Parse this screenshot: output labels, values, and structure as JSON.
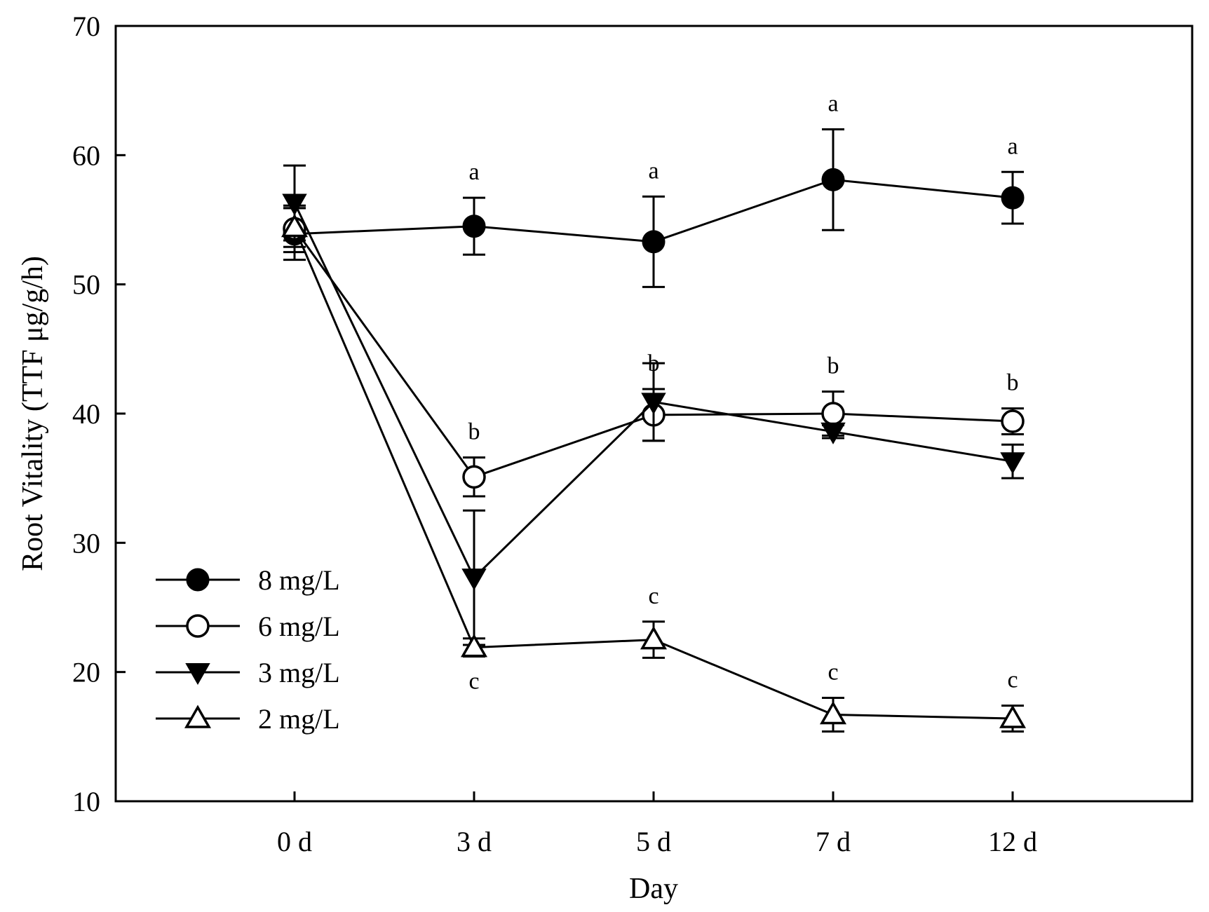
{
  "chart_data": {
    "type": "line",
    "title": "",
    "xlabel": "Day",
    "ylabel": "Root Vitality (TTF μg/g/h)",
    "categories": [
      "0 d",
      "3 d",
      "5 d",
      "7 d",
      "12 d"
    ],
    "ylim": [
      10,
      70
    ],
    "yticks": [
      10,
      20,
      30,
      40,
      50,
      60,
      70
    ],
    "grid": false,
    "legend_position": "bottom-left",
    "series": [
      {
        "name": "8 mg/L",
        "marker": "circle-filled",
        "values": [
          53.9,
          54.5,
          53.3,
          58.1,
          56.7
        ],
        "errors": [
          2.0,
          2.2,
          3.5,
          3.9,
          2.0
        ],
        "letters": [
          "",
          "a",
          "a",
          "a",
          "a"
        ],
        "letter_position": "above"
      },
      {
        "name": "6 mg/L",
        "marker": "circle-open",
        "values": [
          54.3,
          35.1,
          39.9,
          40.0,
          39.4
        ],
        "errors": [
          1.8,
          1.5,
          2.0,
          1.7,
          1.0
        ],
        "letters": [
          "",
          "b",
          "b",
          "b",
          "b"
        ],
        "letter_position": "above"
      },
      {
        "name": "3 mg/L",
        "marker": "triangle-down-filled",
        "values": [
          56.3,
          27.3,
          40.9,
          38.6,
          36.3
        ],
        "errors": [
          2.9,
          5.2,
          3.0,
          0.5,
          1.3
        ],
        "letters": [
          "",
          "",
          "",
          "",
          ""
        ],
        "letter_position": "above"
      },
      {
        "name": "2 mg/L",
        "marker": "triangle-up-open",
        "values": [
          54.4,
          21.9,
          22.5,
          16.7,
          16.4
        ],
        "errors": [
          1.5,
          0.7,
          1.4,
          1.3,
          1.0
        ],
        "letters": [
          "",
          "c",
          "c",
          "c",
          "c"
        ],
        "letter_position": "mixed"
      }
    ]
  }
}
